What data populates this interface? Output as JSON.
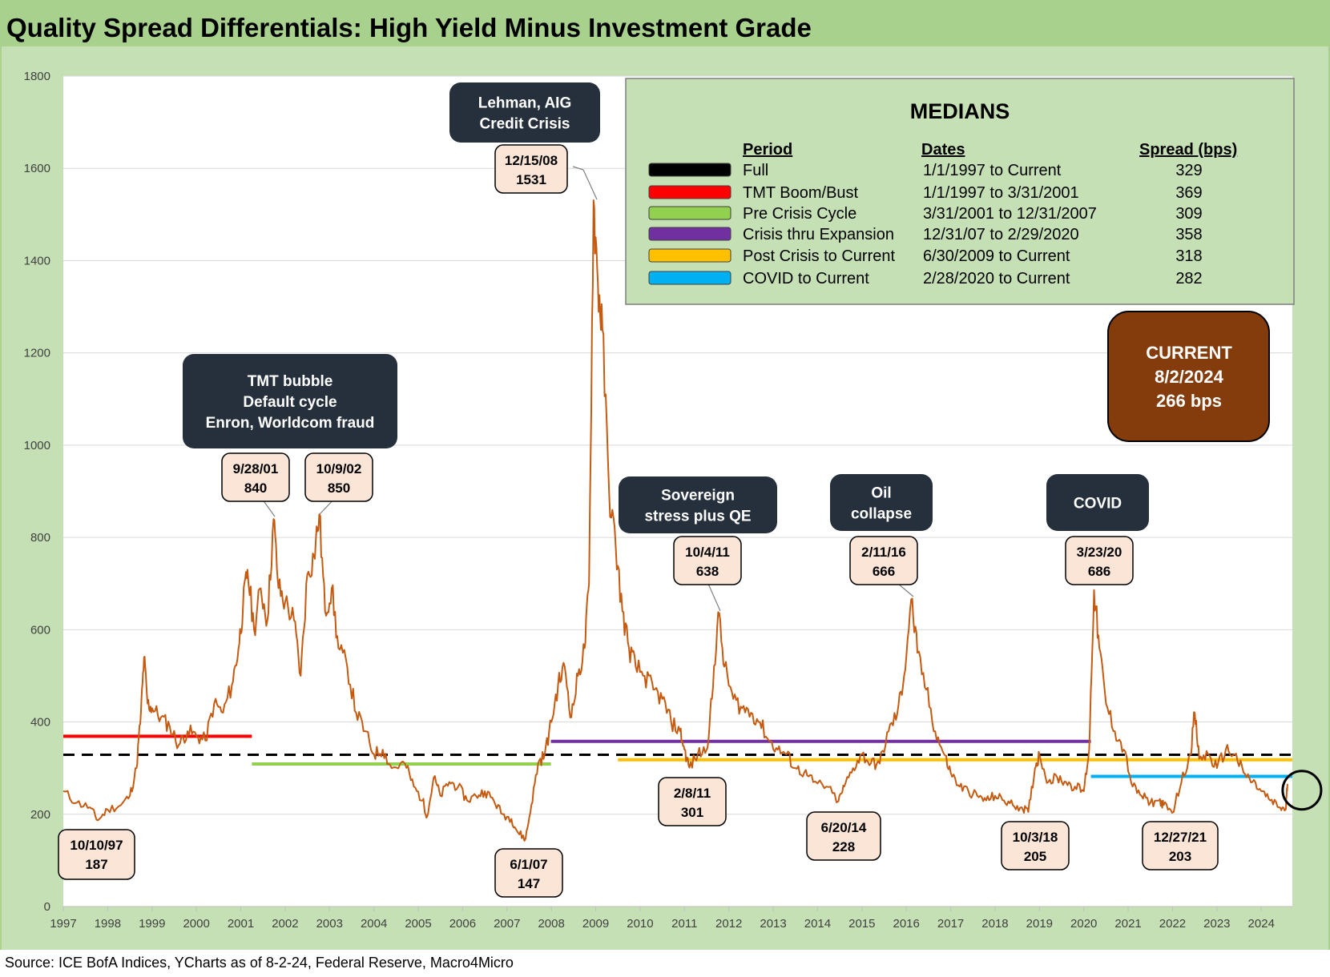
{
  "title": "Quality Spread Differentials: High Yield Minus Investment Grade",
  "source": "Source: ICE BofA Indices, YCharts as of 8-2-24, Federal Reserve, Macro4Micro",
  "colors": {
    "background": "#c5e0b4",
    "title_bar": "#a9d18e",
    "series": "#c55a11",
    "callout_box": "#26303c",
    "label_box": "#fbe5d6",
    "current_box": "#843c0c"
  },
  "chart_data": {
    "type": "line",
    "ylim": [
      0,
      1800
    ],
    "yticks": [
      0,
      200,
      400,
      600,
      800,
      1000,
      1200,
      1400,
      1600,
      1800
    ],
    "xlim": [
      1997,
      2024.7
    ],
    "xticks": [
      "1997",
      "1998",
      "1999",
      "2000",
      "2001",
      "2002",
      "2003",
      "2004",
      "2005",
      "2006",
      "2007",
      "2008",
      "2009",
      "2010",
      "2011",
      "2012",
      "2013",
      "2014",
      "2015",
      "2016",
      "2017",
      "2018",
      "2019",
      "2020",
      "2021",
      "2022",
      "2023",
      "2024"
    ],
    "grid": "horizontal",
    "series": [
      {
        "values": [
          [
            1997.0,
            250
          ],
          [
            1997.3,
            225
          ],
          [
            1997.6,
            215
          ],
          [
            1997.78,
            187
          ],
          [
            1998.0,
            210
          ],
          [
            1998.3,
            220
          ],
          [
            1998.5,
            240
          ],
          [
            1998.65,
            300
          ],
          [
            1998.75,
            420
          ],
          [
            1998.82,
            540
          ],
          [
            1998.9,
            440
          ],
          [
            1999.0,
            430
          ],
          [
            1999.2,
            410
          ],
          [
            1999.4,
            390
          ],
          [
            1999.6,
            350
          ],
          [
            1999.8,
            380
          ],
          [
            2000.0,
            370
          ],
          [
            2000.2,
            360
          ],
          [
            2000.4,
            440
          ],
          [
            2000.6,
            420
          ],
          [
            2000.8,
            480
          ],
          [
            2000.95,
            560
          ],
          [
            2001.05,
            650
          ],
          [
            2001.15,
            730
          ],
          [
            2001.3,
            600
          ],
          [
            2001.45,
            690
          ],
          [
            2001.6,
            620
          ],
          [
            2001.74,
            840
          ],
          [
            2001.85,
            690
          ],
          [
            2002.0,
            660
          ],
          [
            2002.2,
            620
          ],
          [
            2002.35,
            500
          ],
          [
            2002.5,
            720
          ],
          [
            2002.65,
            760
          ],
          [
            2002.77,
            850
          ],
          [
            2002.9,
            640
          ],
          [
            2003.05,
            690
          ],
          [
            2003.2,
            560
          ],
          [
            2003.4,
            520
          ],
          [
            2003.6,
            420
          ],
          [
            2003.8,
            380
          ],
          [
            2004.0,
            330
          ],
          [
            2004.2,
            340
          ],
          [
            2004.4,
            300
          ],
          [
            2004.7,
            310
          ],
          [
            2004.9,
            260
          ],
          [
            2005.1,
            230
          ],
          [
            2005.2,
            195
          ],
          [
            2005.35,
            280
          ],
          [
            2005.5,
            240
          ],
          [
            2005.7,
            270
          ],
          [
            2005.9,
            260
          ],
          [
            2006.1,
            230
          ],
          [
            2006.3,
            240
          ],
          [
            2006.5,
            250
          ],
          [
            2006.7,
            230
          ],
          [
            2006.9,
            200
          ],
          [
            2007.1,
            190
          ],
          [
            2007.25,
            160
          ],
          [
            2007.42,
            147
          ],
          [
            2007.55,
            220
          ],
          [
            2007.7,
            310
          ],
          [
            2007.85,
            330
          ],
          [
            2008.0,
            400
          ],
          [
            2008.15,
            480
          ],
          [
            2008.3,
            520
          ],
          [
            2008.45,
            410
          ],
          [
            2008.6,
            500
          ],
          [
            2008.75,
            560
          ],
          [
            2008.85,
            700
          ],
          [
            2008.95,
            1531
          ],
          [
            2009.05,
            1350
          ],
          [
            2009.15,
            1250
          ],
          [
            2009.3,
            900
          ],
          [
            2009.45,
            780
          ],
          [
            2009.6,
            640
          ],
          [
            2009.75,
            560
          ],
          [
            2009.9,
            520
          ],
          [
            2010.1,
            500
          ],
          [
            2010.3,
            470
          ],
          [
            2010.5,
            450
          ],
          [
            2010.7,
            400
          ],
          [
            2010.9,
            380
          ],
          [
            2011.0,
            340
          ],
          [
            2011.11,
            301
          ],
          [
            2011.3,
            330
          ],
          [
            2011.5,
            340
          ],
          [
            2011.62,
            450
          ],
          [
            2011.76,
            638
          ],
          [
            2011.9,
            520
          ],
          [
            2012.1,
            450
          ],
          [
            2012.3,
            430
          ],
          [
            2012.5,
            420
          ],
          [
            2012.7,
            400
          ],
          [
            2012.9,
            360
          ],
          [
            2013.1,
            340
          ],
          [
            2013.3,
            330
          ],
          [
            2013.5,
            300
          ],
          [
            2013.7,
            290
          ],
          [
            2013.9,
            270
          ],
          [
            2014.2,
            260
          ],
          [
            2014.47,
            228
          ],
          [
            2014.6,
            260
          ],
          [
            2014.8,
            300
          ],
          [
            2015.0,
            330
          ],
          [
            2015.2,
            310
          ],
          [
            2015.4,
            310
          ],
          [
            2015.6,
            380
          ],
          [
            2015.8,
            420
          ],
          [
            2015.95,
            500
          ],
          [
            2016.11,
            666
          ],
          [
            2016.25,
            550
          ],
          [
            2016.45,
            470
          ],
          [
            2016.65,
            380
          ],
          [
            2016.85,
            330
          ],
          [
            2017.0,
            290
          ],
          [
            2017.2,
            260
          ],
          [
            2017.4,
            250
          ],
          [
            2017.6,
            240
          ],
          [
            2017.8,
            230
          ],
          [
            2018.0,
            240
          ],
          [
            2018.2,
            230
          ],
          [
            2018.4,
            220
          ],
          [
            2018.6,
            215
          ],
          [
            2018.75,
            205
          ],
          [
            2018.9,
            300
          ],
          [
            2019.0,
            330
          ],
          [
            2019.2,
            270
          ],
          [
            2019.4,
            280
          ],
          [
            2019.6,
            270
          ],
          [
            2019.8,
            260
          ],
          [
            2020.0,
            250
          ],
          [
            2020.12,
            340
          ],
          [
            2020.23,
            686
          ],
          [
            2020.35,
            560
          ],
          [
            2020.5,
            440
          ],
          [
            2020.7,
            380
          ],
          [
            2020.9,
            340
          ],
          [
            2021.1,
            260
          ],
          [
            2021.3,
            240
          ],
          [
            2021.5,
            225
          ],
          [
            2021.7,
            230
          ],
          [
            2021.8,
            220
          ],
          [
            2021.99,
            203
          ],
          [
            2022.2,
            270
          ],
          [
            2022.4,
            330
          ],
          [
            2022.5,
            420
          ],
          [
            2022.6,
            320
          ],
          [
            2022.8,
            330
          ],
          [
            2023.0,
            300
          ],
          [
            2023.2,
            340
          ],
          [
            2023.4,
            330
          ],
          [
            2023.6,
            290
          ],
          [
            2023.8,
            270
          ],
          [
            2024.0,
            250
          ],
          [
            2024.2,
            230
          ],
          [
            2024.4,
            215
          ],
          [
            2024.55,
            210
          ],
          [
            2024.59,
            266
          ]
        ]
      }
    ],
    "median_lines": [
      {
        "color": "#000000",
        "dashed": true,
        "value": 329,
        "x_start": 1997.0,
        "x_end": 2024.7
      },
      {
        "color": "#ff0000",
        "dashed": false,
        "value": 369,
        "x_start": 1997.0,
        "x_end": 2001.25
      },
      {
        "color": "#92d050",
        "dashed": false,
        "value": 309,
        "x_start": 2001.25,
        "x_end": 2007.99
      },
      {
        "color": "#7030a0",
        "dashed": false,
        "value": 358,
        "x_start": 2007.99,
        "x_end": 2020.16
      },
      {
        "color": "#ffc000",
        "dashed": false,
        "value": 318,
        "x_start": 2009.5,
        "x_end": 2024.7
      },
      {
        "color": "#00b0f0",
        "dashed": false,
        "value": 282,
        "x_start": 2020.16,
        "x_end": 2024.7
      }
    ],
    "callouts": [
      {
        "lines": [
          "TMT bubble",
          "Default cycle",
          "Enron, Worldcom fraud"
        ]
      },
      {
        "lines": [
          "Lehman, AIG",
          "Credit Crisis"
        ]
      },
      {
        "lines": [
          "Sovereign",
          "stress plus QE"
        ]
      },
      {
        "lines": [
          "Oil",
          "collapse"
        ]
      },
      {
        "lines": [
          "COVID"
        ]
      }
    ],
    "point_labels": [
      {
        "date": "10/10/97",
        "value": "187"
      },
      {
        "date": "9/28/01",
        "value": "840"
      },
      {
        "date": "10/9/02",
        "value": "850"
      },
      {
        "date": "6/1/07",
        "value": "147"
      },
      {
        "date": "12/15/08",
        "value": "1531"
      },
      {
        "date": "10/4/11",
        "value": "638"
      },
      {
        "date": "2/8/11",
        "value": "301"
      },
      {
        "date": "6/20/14",
        "value": "228"
      },
      {
        "date": "2/11/16",
        "value": "666"
      },
      {
        "date": "10/3/18",
        "value": "205"
      },
      {
        "date": "3/23/20",
        "value": "686"
      },
      {
        "date": "12/27/21",
        "value": "203"
      }
    ],
    "medians_table": {
      "title": "MEDIANS",
      "headers": [
        "Period",
        "Dates",
        "Spread (bps)"
      ],
      "rows": [
        {
          "color": "#000000",
          "period": "Full",
          "dates": "1/1/1997 to Current",
          "spread": "329"
        },
        {
          "color": "#ff0000",
          "period": "TMT Boom/Bust",
          "dates": "1/1/1997 to 3/31/2001",
          "spread": "369"
        },
        {
          "color": "#92d050",
          "period": "Pre Crisis Cycle",
          "dates": "3/31/2001 to 12/31/2007",
          "spread": "309"
        },
        {
          "color": "#7030a0",
          "period": "Crisis thru Expansion",
          "dates": "12/31/07 to 2/29/2020",
          "spread": "358"
        },
        {
          "color": "#ffc000",
          "period": "Post Crisis to Current",
          "dates": "6/30/2009 to Current",
          "spread": "318"
        },
        {
          "color": "#00b0f0",
          "period": "COVID to Current",
          "dates": "2/28/2020 to Current",
          "spread": "282"
        }
      ]
    },
    "current": {
      "lines": [
        "CURRENT",
        "8/2/2024",
        "266 bps"
      ]
    }
  }
}
